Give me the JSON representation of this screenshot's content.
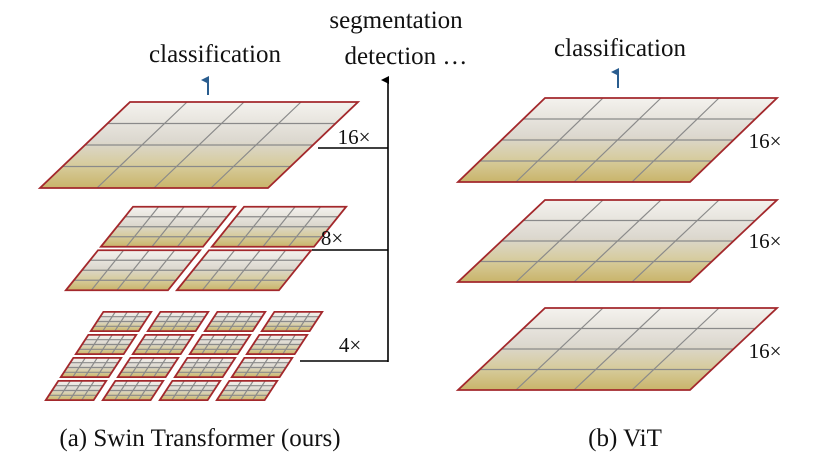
{
  "left": {
    "classification": "classification",
    "outputs": [
      "segmentation",
      "detection …"
    ],
    "scales": [
      "16×",
      "8×",
      "4×"
    ],
    "caption": "(a) Swin Transformer (ours)"
  },
  "right": {
    "classification": "classification",
    "scales": [
      "16×",
      "16×",
      "16×"
    ],
    "caption": "(b) ViT"
  }
}
